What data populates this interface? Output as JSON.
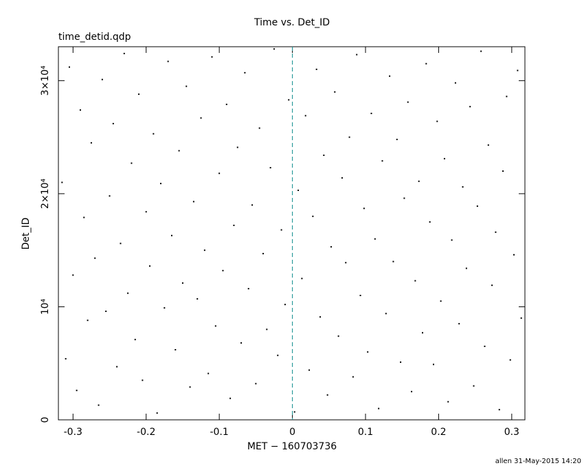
{
  "chart_data": {
    "type": "scatter",
    "title": "Time vs. Det_ID",
    "subtitle": "time_detid.qdp",
    "x_label": "MET − 160703736",
    "y_label": "Det_ID",
    "footer": "allen 31-May-2015 14:20",
    "color": "#000000",
    "vline": {
      "x": 0,
      "color": "#2a9a9a"
    },
    "xlim": [
      -0.32,
      0.318
    ],
    "ylim": [
      0,
      33000
    ],
    "xticks": [
      -0.3,
      -0.2,
      -0.1,
      0,
      0.1,
      0.2,
      0.3
    ],
    "yticks": [
      0,
      {
        "value": 10000,
        "label": "10⁴"
      },
      {
        "value": 20000,
        "label": "2×10⁴"
      },
      {
        "value": 30000,
        "label": "3×10⁴"
      }
    ],
    "x": [
      -0.315,
      -0.31,
      -0.305,
      -0.3,
      -0.295,
      -0.29,
      -0.285,
      -0.28,
      -0.275,
      -0.27,
      -0.265,
      -0.26,
      -0.255,
      -0.25,
      -0.245,
      -0.24,
      -0.235,
      -0.23,
      -0.225,
      -0.22,
      -0.215,
      -0.21,
      -0.205,
      -0.2,
      -0.195,
      -0.19,
      -0.185,
      -0.18,
      -0.175,
      -0.17,
      -0.165,
      -0.16,
      -0.155,
      -0.15,
      -0.145,
      -0.14,
      -0.135,
      -0.13,
      -0.125,
      -0.12,
      -0.115,
      -0.11,
      -0.105,
      -0.1,
      -0.095,
      -0.09,
      -0.085,
      -0.08,
      -0.075,
      -0.07,
      -0.065,
      -0.06,
      -0.055,
      -0.05,
      -0.045,
      -0.04,
      -0.035,
      -0.03,
      -0.025,
      -0.02,
      -0.015,
      -0.01,
      -0.005,
      0.003,
      0.008,
      0.013,
      0.018,
      0.023,
      0.028,
      0.033,
      0.038,
      0.043,
      0.048,
      0.053,
      0.058,
      0.063,
      0.068,
      0.073,
      0.078,
      0.083,
      0.088,
      0.093,
      0.098,
      0.103,
      0.108,
      0.113,
      0.118,
      0.123,
      0.128,
      0.133,
      0.138,
      0.143,
      0.148,
      0.153,
      0.158,
      0.163,
      0.168,
      0.173,
      0.178,
      0.183,
      0.188,
      0.193,
      0.198,
      0.203,
      0.208,
      0.213,
      0.218,
      0.223,
      0.228,
      0.233,
      0.238,
      0.243,
      0.248,
      0.253,
      0.258,
      0.263,
      0.268,
      0.273,
      0.278,
      0.283,
      0.288,
      0.293,
      0.298,
      0.303,
      0.308,
      0.313
    ],
    "values": [
      21000,
      5400,
      31200,
      12800,
      2600,
      27400,
      17900,
      8800,
      24500,
      14300,
      1300,
      30100,
      9600,
      19800,
      26200,
      4700,
      15600,
      32400,
      11200,
      22700,
      7100,
      28800,
      3500,
      18400,
      13600,
      25300,
      600,
      20900,
      9900,
      31700,
      16300,
      6200,
      23800,
      12100,
      29500,
      2900,
      19300,
      10700,
      26700,
      15000,
      4100,
      32100,
      8300,
      21800,
      13200,
      27900,
      1900,
      17200,
      24100,
      6800,
      30700,
      11600,
      19000,
      3200,
      25800,
      14700,
      8000,
      22300,
      32800,
      5700,
      16800,
      10200,
      28300,
      700,
      20300,
      12500,
      26900,
      4400,
      18000,
      31000,
      9100,
      23400,
      2200,
      15300,
      29000,
      7400,
      21400,
      13900,
      25000,
      3800,
      32300,
      11000,
      18700,
      6000,
      27100,
      16000,
      1000,
      22900,
      9400,
      30400,
      14000,
      24800,
      5100,
      19600,
      28100,
      2500,
      12300,
      21100,
      7700,
      31500,
      17500,
      4900,
      26400,
      10500,
      23100,
      1600,
      15900,
      29800,
      8500,
      20600,
      13400,
      27700,
      3000,
      18900,
      32600,
      6500,
      24300,
      11900,
      16600,
      900,
      22000,
      28600,
      5300,
      14600,
      30900,
      9000
    ]
  }
}
